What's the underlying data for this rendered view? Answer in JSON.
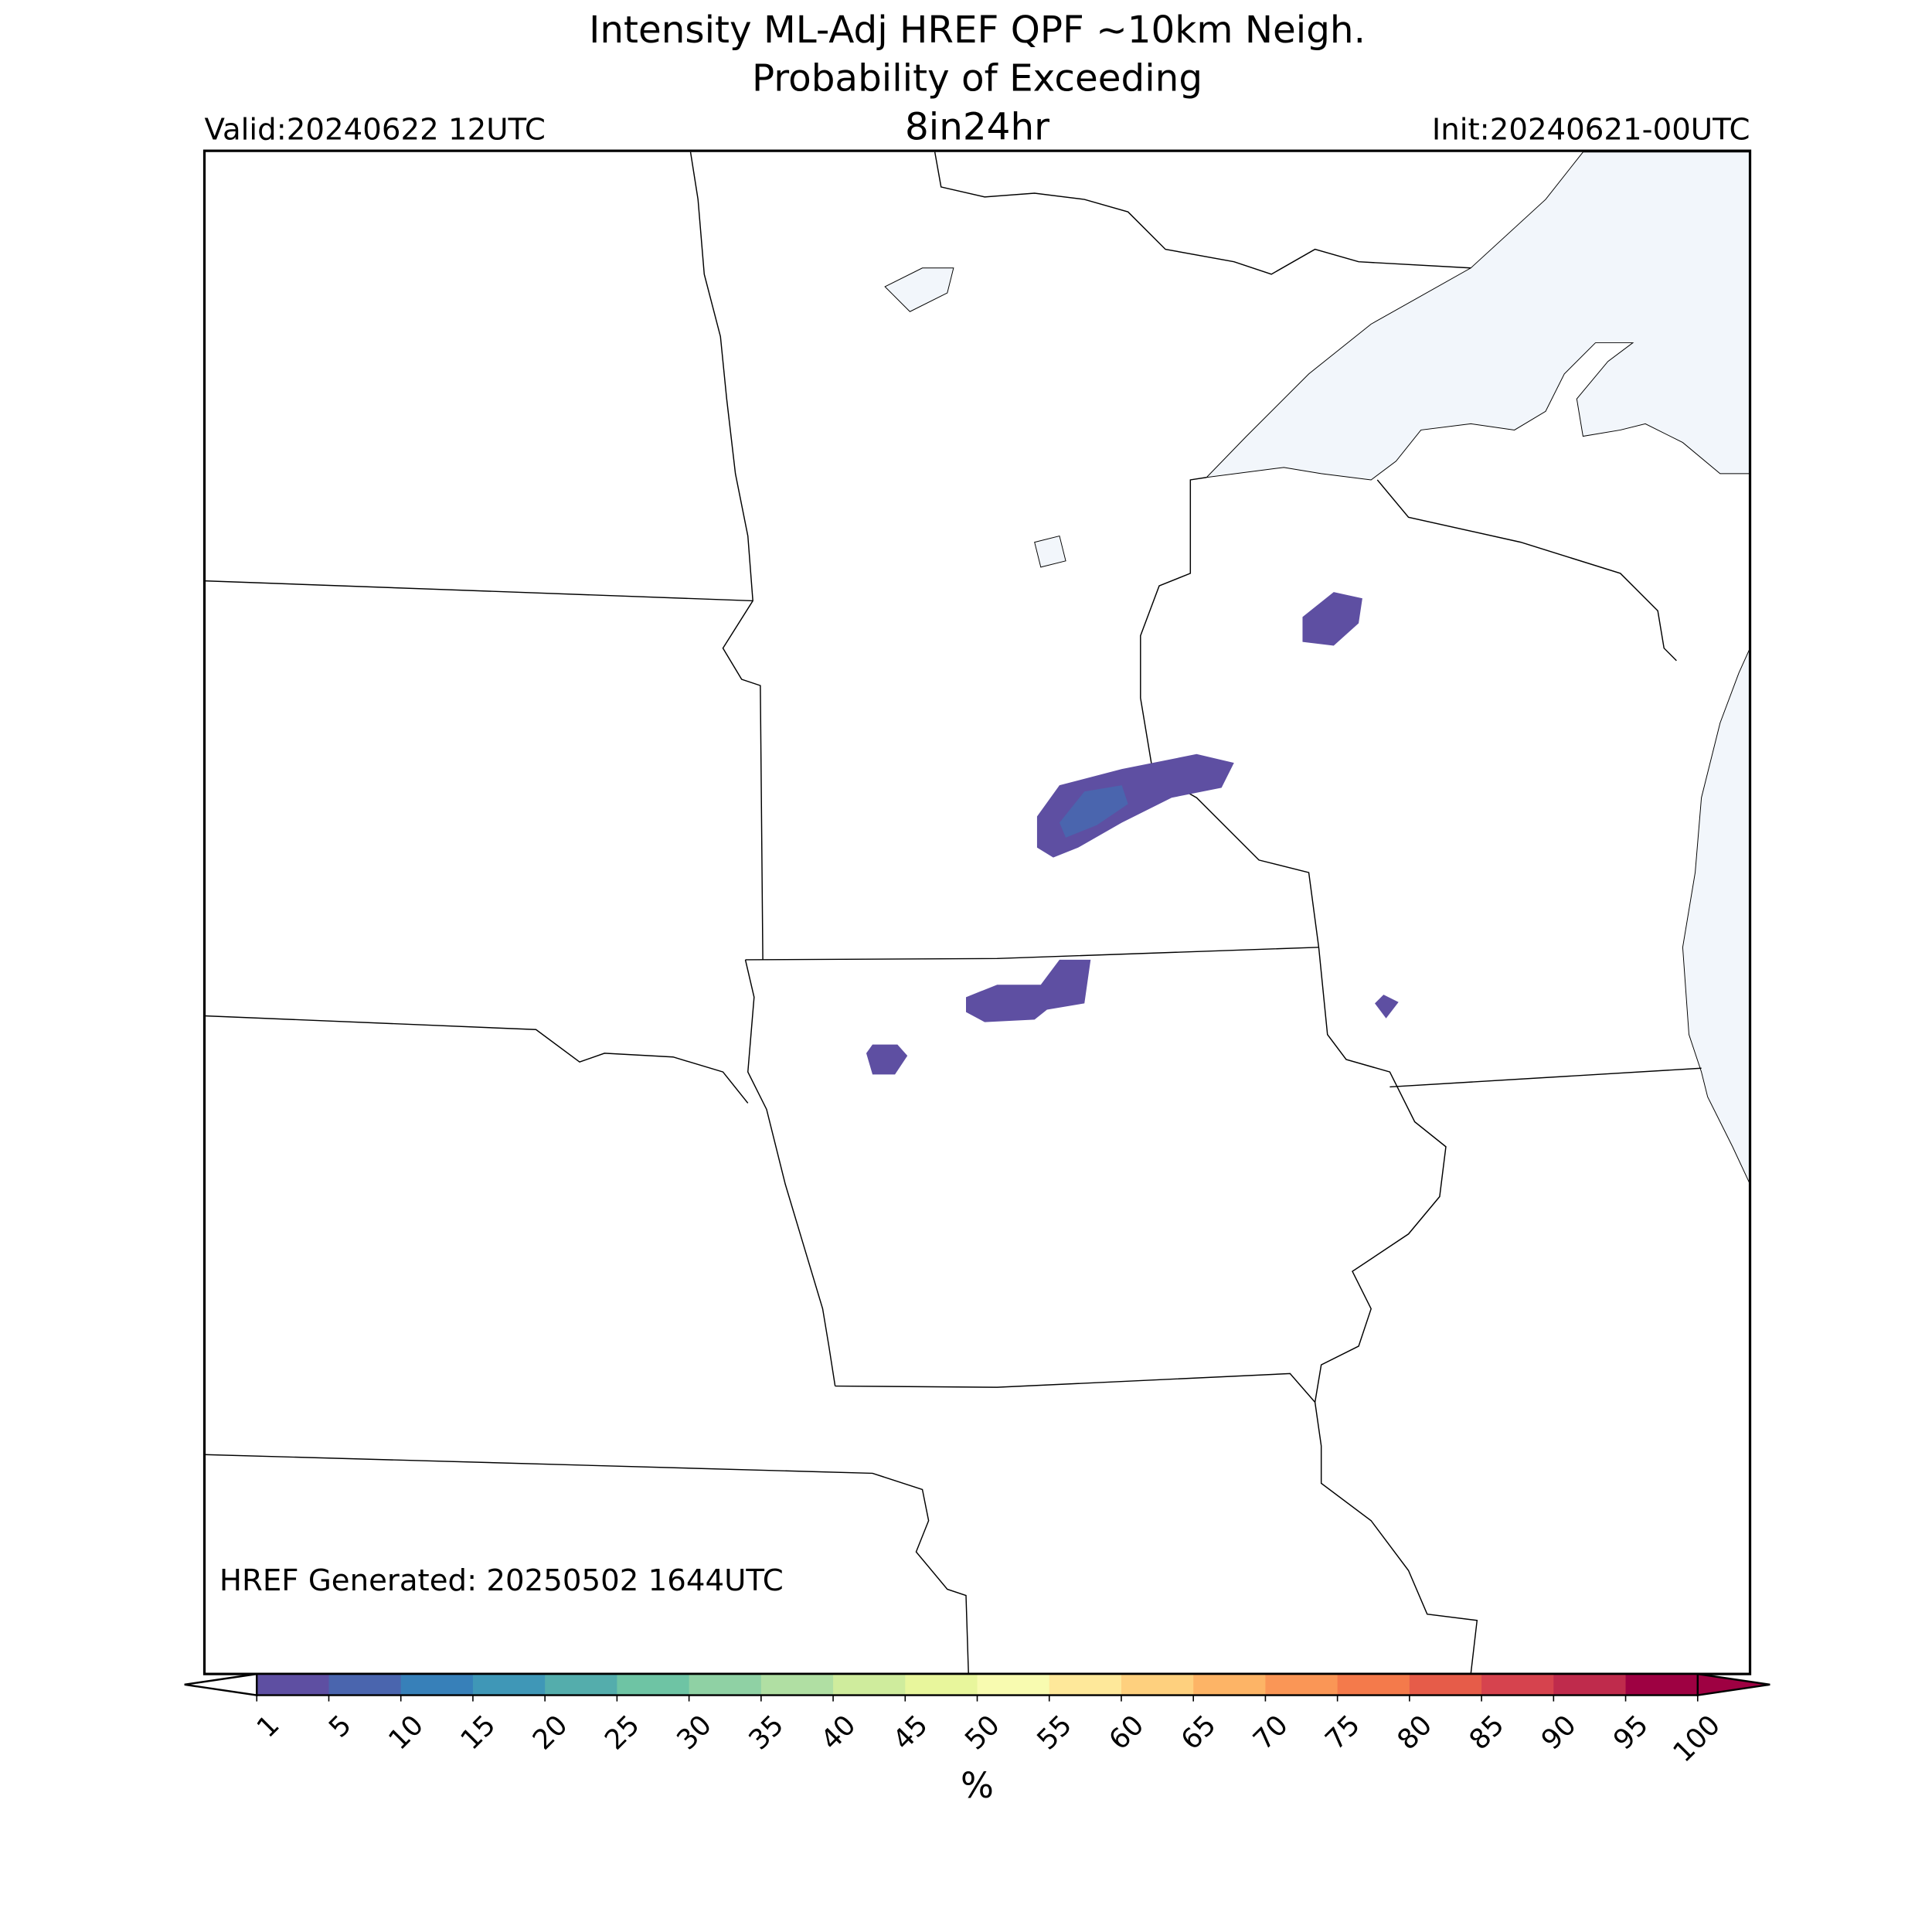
{
  "header": {
    "title_line1": "Intensity ML-Adj HREF QPF ~10km Neigh.",
    "title_line2": "Probability of Exceeding",
    "threshold": "8in24hr",
    "valid": "Valid:20240622 12UTC",
    "init": "Init:20240621-00UTC"
  },
  "footer": {
    "generated": "HREF Generated: 20250502 1644UTC"
  },
  "colorbar": {
    "label": "%",
    "ticks": [
      1,
      5,
      10,
      15,
      20,
      25,
      30,
      35,
      40,
      45,
      50,
      55,
      60,
      65,
      70,
      75,
      80,
      85,
      90,
      95,
      100
    ],
    "colors": [
      "#5e4fa2",
      "#4a65ae",
      "#3780b9",
      "#3f97b7",
      "#54adac",
      "#6ec4a4",
      "#8fd1a4",
      "#b0dfa3",
      "#cfec9d",
      "#e8f69c",
      "#f8fbb0",
      "#fee89a",
      "#fed07e",
      "#fdb466",
      "#fa9656",
      "#f47a4b",
      "#e65c49",
      "#d6434e",
      "#bf2b4c",
      "#9e0142"
    ],
    "over_color": "#9e0142"
  }
}
